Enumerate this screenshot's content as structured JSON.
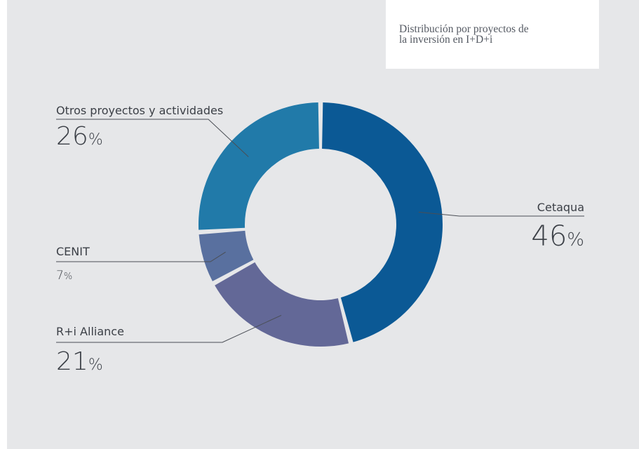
{
  "chart_data": {
    "type": "pie",
    "donut": true,
    "title": "Distribución por proyectos de la inversión en I+D+i",
    "slices": [
      {
        "label": "Cetaqua",
        "value": 46,
        "value_label": "46",
        "color": "#0b5995"
      },
      {
        "label": "R+i Alliance",
        "value": 21,
        "value_label": "21",
        "color": "#636897"
      },
      {
        "label": "CENIT",
        "value": 7,
        "value_label": "7",
        "color": "#59709f"
      },
      {
        "label": "Otros proyectos y actividades",
        "value": 26,
        "value_label": "26",
        "color": "#217aa9"
      }
    ],
    "percent_sign": "%"
  },
  "title": {
    "line1": "Distribución por proyectos de",
    "line2": "la inversión en I+D+i"
  }
}
